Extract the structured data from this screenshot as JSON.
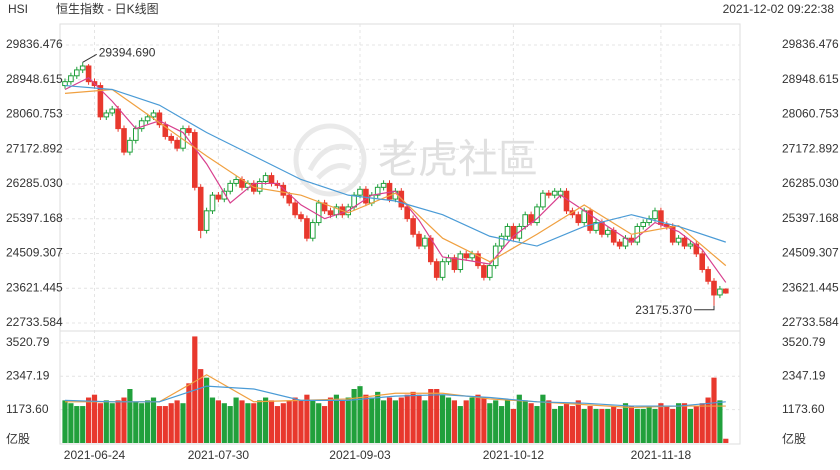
{
  "header": {
    "symbol": "HSI",
    "title": "恒生指数 - 日K线图",
    "timestamp": "2021-12-02 09:22:38"
  },
  "watermark": "老虎社區",
  "chart_data": [
    {
      "type": "candlestick",
      "categories": [
        null,
        null,
        null,
        null,
        null,
        "2021-06-24",
        null,
        null,
        null,
        null,
        null,
        null,
        null,
        null,
        null,
        null,
        null,
        null,
        null,
        null,
        null,
        null,
        null,
        null,
        null,
        null,
        "2021-07-30",
        null,
        null,
        null,
        null,
        null,
        null,
        null,
        null,
        null,
        null,
        null,
        null,
        null,
        null,
        null,
        null,
        null,
        null,
        null,
        null,
        null,
        null,
        null,
        "2021-09-03",
        null,
        null,
        null,
        null,
        null,
        null,
        null,
        null,
        null,
        null,
        null,
        null,
        null,
        null,
        null,
        null,
        null,
        null,
        null,
        null,
        null,
        null,
        null,
        null,
        null,
        "2021-10-12",
        null,
        null,
        null,
        null,
        null,
        null,
        null,
        null,
        null,
        null,
        null,
        null,
        null,
        null,
        null,
        null,
        null,
        null,
        null,
        null,
        null,
        null,
        null,
        null,
        "2021-11-18",
        null,
        null,
        null,
        null,
        null,
        null,
        null,
        null,
        null,
        null,
        null
      ],
      "open": [
        28800,
        28900,
        29050,
        29200,
        29300,
        28900,
        28800,
        28000,
        28100,
        28200,
        27700,
        27100,
        27400,
        27700,
        27900,
        28000,
        28100,
        27800,
        27500,
        27400,
        27200,
        27700,
        27600,
        26200,
        25100,
        25600,
        26000,
        25900,
        26100,
        26300,
        26400,
        26200,
        26300,
        26100,
        26350,
        26500,
        26300,
        26250,
        26000,
        25800,
        25500,
        25400,
        24900,
        25300,
        25800,
        25600,
        25500,
        25700,
        25500,
        25700,
        26000,
        26150,
        25800,
        26000,
        26200,
        26300,
        25900,
        26100,
        25700,
        25400,
        25000,
        24700,
        24900,
        24300,
        23900,
        24300,
        24400,
        24100,
        24500,
        24400,
        24500,
        24200,
        23900,
        24200,
        24700,
        24950,
        25200,
        24900,
        25200,
        25500,
        25300,
        25700,
        26050,
        26000,
        26000,
        26100,
        25600,
        25500,
        25300,
        25600,
        25100,
        25300,
        25000,
        25100,
        24800,
        24700,
        24900,
        24800,
        25200,
        25300,
        25400,
        25600,
        25250,
        25200,
        24800,
        24900,
        24700,
        24750,
        24500,
        24100,
        23800,
        23450,
        23600
      ],
      "high": [
        28980,
        29130,
        29280,
        29394.69,
        29350,
        28980,
        28880,
        28180,
        28280,
        28280,
        27780,
        27480,
        27780,
        27980,
        28080,
        28180,
        28180,
        27880,
        27580,
        27480,
        27780,
        27780,
        27680,
        26280,
        25680,
        26080,
        26080,
        26180,
        26380,
        26480,
        26480,
        26380,
        26380,
        26430,
        26580,
        26580,
        26380,
        26330,
        26080,
        25880,
        25580,
        25480,
        25380,
        25880,
        25880,
        25680,
        25780,
        25780,
        25780,
        26080,
        26230,
        26230,
        26080,
        26280,
        26380,
        26380,
        26180,
        26180,
        25780,
        25480,
        25080,
        24980,
        24980,
        24380,
        24380,
        24480,
        24480,
        24580,
        24580,
        24580,
        24580,
        24280,
        24280,
        24780,
        25030,
        25280,
        25280,
        25280,
        25580,
        25580,
        25780,
        26130,
        26130,
        26180,
        26180,
        26180,
        25680,
        25580,
        25680,
        25680,
        25380,
        25380,
        25180,
        25180,
        24880,
        24980,
        24980,
        25280,
        25380,
        25480,
        25680,
        25680,
        25330,
        25280,
        24980,
        24980,
        24830,
        24830,
        24580,
        24180,
        23880,
        23680,
        23620
      ],
      "low": [
        28720,
        28820,
        28970,
        29120,
        28820,
        28720,
        27920,
        27920,
        28020,
        27620,
        27020,
        27020,
        27320,
        27620,
        27820,
        27920,
        27720,
        27420,
        27320,
        27120,
        27120,
        27520,
        26120,
        24900,
        25020,
        25520,
        25820,
        25820,
        26020,
        26220,
        26120,
        26120,
        26020,
        26020,
        26270,
        26220,
        26170,
        25920,
        25720,
        25420,
        25320,
        24820,
        24820,
        25220,
        25520,
        25420,
        25420,
        25420,
        25420,
        25620,
        25920,
        25720,
        25720,
        25920,
        26120,
        25820,
        25820,
        25620,
        25320,
        24920,
        24620,
        24620,
        24220,
        23820,
        23820,
        24220,
        24020,
        24020,
        24320,
        24320,
        24120,
        23820,
        23820,
        24120,
        24620,
        24870,
        24820,
        24820,
        25120,
        25220,
        25220,
        25620,
        25920,
        25920,
        25920,
        25520,
        25420,
        25220,
        25220,
        25020,
        25020,
        24920,
        24920,
        24720,
        24620,
        24620,
        24720,
        24720,
        25120,
        25220,
        25320,
        25170,
        25120,
        24720,
        24720,
        24620,
        24620,
        24420,
        24020,
        23720,
        23175.37,
        23370,
        23480
      ],
      "close": [
        28900,
        29050,
        29200,
        29300,
        28900,
        28800,
        28000,
        28100,
        28200,
        27700,
        27100,
        27400,
        27700,
        27900,
        28000,
        28100,
        27800,
        27500,
        27400,
        27200,
        27700,
        27600,
        26200,
        25100,
        25600,
        26000,
        25900,
        26100,
        26300,
        26400,
        26200,
        26300,
        26100,
        26350,
        26500,
        26300,
        26250,
        26000,
        25800,
        25500,
        25400,
        24900,
        25300,
        25800,
        25600,
        25500,
        25700,
        25500,
        25700,
        26000,
        26150,
        25800,
        26000,
        26200,
        26300,
        25900,
        26100,
        25700,
        25400,
        25000,
        24700,
        24900,
        24300,
        23900,
        24300,
        24400,
        24100,
        24500,
        24400,
        24500,
        24200,
        23900,
        24200,
        24700,
        24950,
        25200,
        24900,
        25200,
        25500,
        25300,
        25700,
        26050,
        26000,
        26100,
        26100,
        25600,
        25500,
        25300,
        25600,
        25100,
        25300,
        25000,
        25100,
        24800,
        24700,
        24900,
        24800,
        25200,
        25300,
        25400,
        25600,
        25250,
        25200,
        24800,
        24900,
        24700,
        24750,
        24500,
        24100,
        23800,
        23450,
        23600,
        23500
      ],
      "up_color": "#21a03c",
      "down_color": "#e8382d",
      "lines": [
        {
          "color": "#d8408e",
          "x": [
            0,
            4,
            8,
            12,
            16,
            20,
            24,
            28,
            32,
            36,
            40,
            44,
            48,
            52,
            56,
            60,
            64,
            68,
            72,
            76,
            80,
            84,
            88,
            92,
            96,
            100,
            104,
            108,
            112
          ],
          "values": [
            28700,
            29000,
            28400,
            27700,
            27900,
            27600,
            26800,
            25800,
            26300,
            26300,
            25750,
            25400,
            25600,
            26000,
            26100,
            25360,
            24420,
            24340,
            24240,
            24950,
            25400,
            26000,
            25600,
            25200,
            24800,
            25300,
            25070,
            24610,
            23770
          ]
        },
        {
          "color": "#f0a040",
          "x": [
            0,
            8,
            16,
            24,
            32,
            40,
            48,
            56,
            64,
            72,
            80,
            88,
            96,
            104,
            112
          ],
          "values": [
            28600,
            28700,
            27850,
            27000,
            26200,
            26000,
            25550,
            26050,
            24900,
            24300,
            25000,
            25750,
            25000,
            25220,
            24200
          ]
        },
        {
          "color": "#4a9bd6",
          "x": [
            0,
            8,
            16,
            24,
            32,
            40,
            48,
            56,
            64,
            72,
            80,
            88,
            96,
            104,
            112
          ],
          "values": [
            28800,
            28700,
            28300,
            27600,
            27000,
            26400,
            26000,
            25850,
            25500,
            24950,
            24700,
            25200,
            25500,
            25200,
            24800
          ]
        }
      ],
      "ylim": [
        22733.584,
        29836.476
      ],
      "yticks": [
        22733.584,
        23621.445,
        24509.307,
        25397.168,
        {
          "value": 26285.03,
          "label": "26285.030"
        },
        27172.892,
        28060.753,
        28948.615,
        29836.476
      ],
      "max_label": "29394.690",
      "min_label": "23175.370",
      "grid": true
    },
    {
      "type": "bar",
      "values": [
        1500,
        1400,
        1300,
        1300,
        1600,
        1700,
        1400,
        1500,
        1400,
        1500,
        1600,
        1900,
        1450,
        1400,
        1500,
        1600,
        1300,
        1300,
        1400,
        1500,
        1400,
        2100,
        3750,
        2600,
        2300,
        1600,
        1500,
        1400,
        1300,
        1600,
        1500,
        1400,
        1400,
        1500,
        1600,
        1500,
        1300,
        1400,
        1500,
        1600,
        1500,
        1700,
        1500,
        1400,
        1300,
        1600,
        1700,
        1500,
        1600,
        1900,
        2000,
        1700,
        1600,
        1800,
        1500,
        1600,
        1500,
        1600,
        1700,
        1800,
        1700,
        1500,
        1900,
        1900,
        1700,
        1600,
        1500,
        1300,
        1500,
        1600,
        1700,
        1600,
        1400,
        1500,
        1300,
        1500,
        1200,
        1700,
        1500,
        1400,
        1300,
        1700,
        1500,
        1200,
        1300,
        1400,
        1300,
        1500,
        1200,
        1300,
        1200,
        1200,
        1200,
        1300,
        1200,
        1400,
        1300,
        1200,
        1200,
        1300,
        1200,
        1400,
        1300,
        1200,
        1400,
        1400,
        1200,
        1300,
        1400,
        1600,
        2300,
        1500,
        150
      ],
      "lines": [
        {
          "color": "#f0a040",
          "x": [
            0,
            8,
            16,
            24,
            32,
            40,
            48,
            56,
            64,
            72,
            80,
            88,
            96,
            104,
            112
          ],
          "values": [
            1450,
            1450,
            1450,
            2400,
            1450,
            1500,
            1550,
            1750,
            1750,
            1550,
            1450,
            1350,
            1250,
            1300,
            1300
          ]
        },
        {
          "color": "#4a9bd6",
          "x": [
            0,
            8,
            16,
            24,
            32,
            40,
            48,
            56,
            64,
            72,
            80,
            88,
            96,
            104,
            112
          ],
          "values": [
            1500,
            1450,
            1450,
            2000,
            1900,
            1500,
            1500,
            1650,
            1700,
            1600,
            1450,
            1400,
            1300,
            1300,
            1450
          ]
        }
      ],
      "ylim": [
        0,
        3800
      ],
      "yticks": [
        {
          "value": 1173.6,
          "label": "1173.60"
        },
        2347.19,
        3520.79
      ],
      "y_unit": "亿股",
      "grid": true
    }
  ]
}
